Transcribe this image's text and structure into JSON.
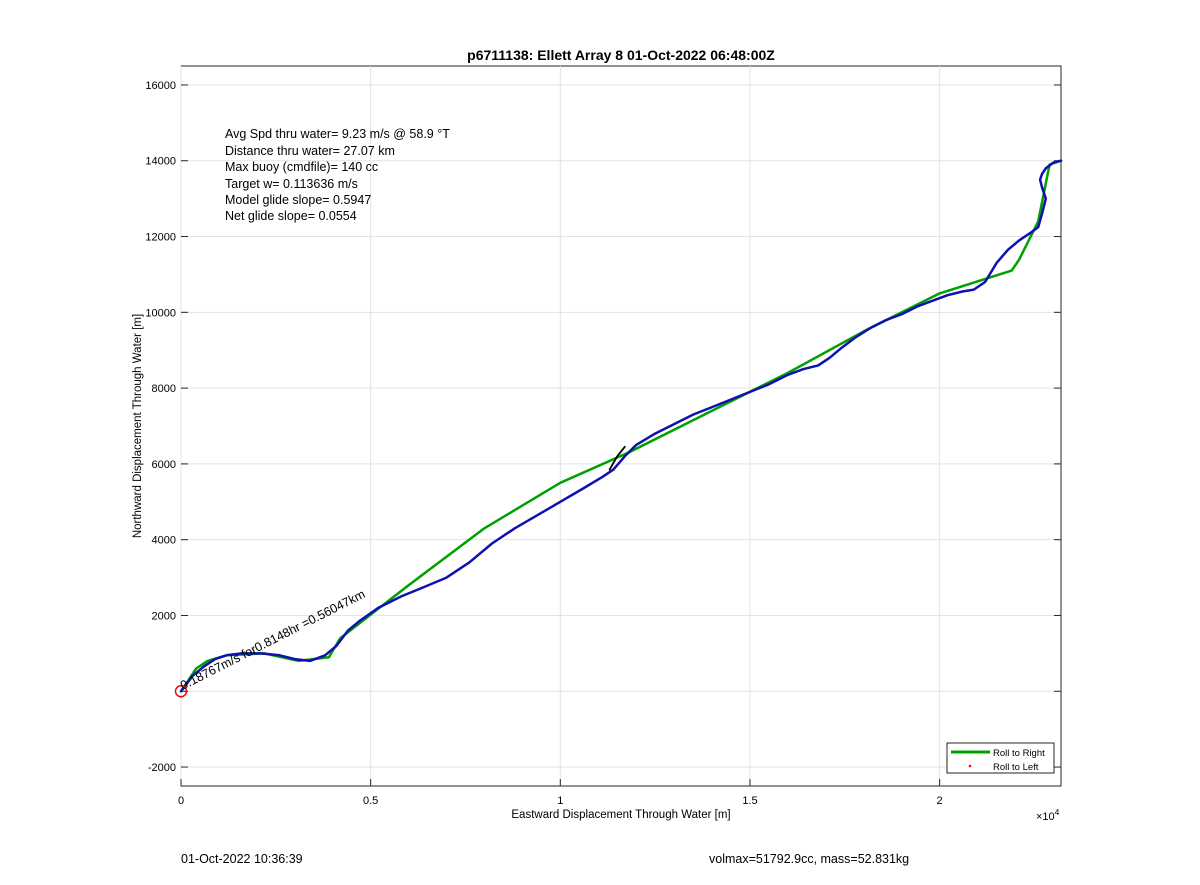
{
  "chart_data": {
    "type": "line",
    "title": "p6711138: Ellett Array 8 01-Oct-2022 06:48:00Z",
    "xlabel": "Eastward Displacement Through Water [m]",
    "ylabel": "Northward Displacement Through Water [m]",
    "xlim": [
      0,
      23200
    ],
    "ylim": [
      -2500,
      16500
    ],
    "x_exponent_label": "×10",
    "x_exponent_power": "4",
    "xticks": [
      0,
      5000,
      10000,
      15000,
      20000
    ],
    "xtick_labels": [
      "0",
      "0.5",
      "1",
      "1.5",
      "2"
    ],
    "yticks": [
      -2000,
      0,
      2000,
      4000,
      6000,
      8000,
      10000,
      12000,
      14000,
      16000
    ],
    "ytick_labels": [
      "-2000",
      "",
      "2000",
      "4000",
      "6000",
      "8000",
      "10000",
      "12000",
      "14000",
      "16000"
    ],
    "grid": true,
    "legend_placement": "bottom-right",
    "legend": [
      {
        "label": "Roll to Right",
        "color": "#00a000",
        "style": "line"
      },
      {
        "label": "Roll to Left",
        "color": "#ff0000",
        "style": "dot"
      }
    ],
    "info_lines": [
      "Avg Spd thru water=  9.23 m/s @  58.9 °T",
      "Distance thru water= 27.07 km",
      "Max buoy (cmdfile)= 140 cc",
      "Target w= 0.113636 m/s",
      "Model glide slope= 0.5947",
      "Net glide slope= 0.0554"
    ],
    "annotation": "0.18767m/s for0.8148hr =0.56047km",
    "series": [
      {
        "color": "#00a000",
        "x": [
          0,
          200,
          400,
          700,
          1200,
          2200,
          3100,
          3900,
          4200,
          6000,
          8000,
          10000,
          11800,
          14000,
          16000,
          18000,
          20000,
          21900,
          22100,
          22600,
          22900,
          23200
        ],
        "y": [
          0,
          300,
          600,
          800,
          950,
          1000,
          800,
          900,
          1400,
          2800,
          4300,
          5500,
          6300,
          7400,
          8400,
          9500,
          10500,
          11100,
          11400,
          12400,
          13900,
          14000
        ]
      },
      {
        "color": "#1010b0",
        "x": [
          0,
          150,
          300,
          600,
          900,
          1200,
          1600,
          2100,
          2600,
          3000,
          3400,
          3800,
          4100,
          4400,
          4700,
          5200,
          5800,
          6400,
          7000,
          7600,
          8200,
          8800,
          9400,
          10000,
          10600,
          11100,
          11400,
          11700,
          12000,
          12500,
          13000,
          13500,
          14000,
          14500,
          15000,
          15500,
          16000,
          16400,
          16800,
          17100,
          17400,
          17800,
          18200,
          18600,
          19000,
          19400,
          19800,
          20200,
          20600,
          20900,
          21200,
          21500,
          21800,
          22100,
          22400,
          22600,
          22700,
          22800,
          22700,
          22650,
          22700,
          22800,
          23000,
          23200
        ],
        "y": [
          0,
          200,
          400,
          650,
          850,
          950,
          1000,
          1000,
          950,
          850,
          800,
          950,
          1200,
          1600,
          1850,
          2200,
          2500,
          2750,
          3000,
          3400,
          3900,
          4300,
          4650,
          5000,
          5350,
          5650,
          5850,
          6200,
          6500,
          6800,
          7050,
          7300,
          7500,
          7700,
          7900,
          8100,
          8350,
          8500,
          8600,
          8800,
          9050,
          9350,
          9600,
          9800,
          9950,
          10150,
          10300,
          10450,
          10550,
          10600,
          10800,
          11300,
          11650,
          11900,
          12100,
          12250,
          12600,
          13000,
          13300,
          13500,
          13650,
          13800,
          13950,
          14000
        ]
      },
      {
        "color": "#000000",
        "x": [
          11300,
          11500,
          11700
        ],
        "y": [
          5850,
          6200,
          6450
        ]
      }
    ],
    "markers": [
      {
        "label": "start",
        "color": "#ff0000",
        "x": 0,
        "y": 0
      }
    ]
  },
  "footer": {
    "timestamp": "01-Oct-2022 10:36:39",
    "vol_mass": "volmax=51792.9cc, mass=52.831kg"
  }
}
